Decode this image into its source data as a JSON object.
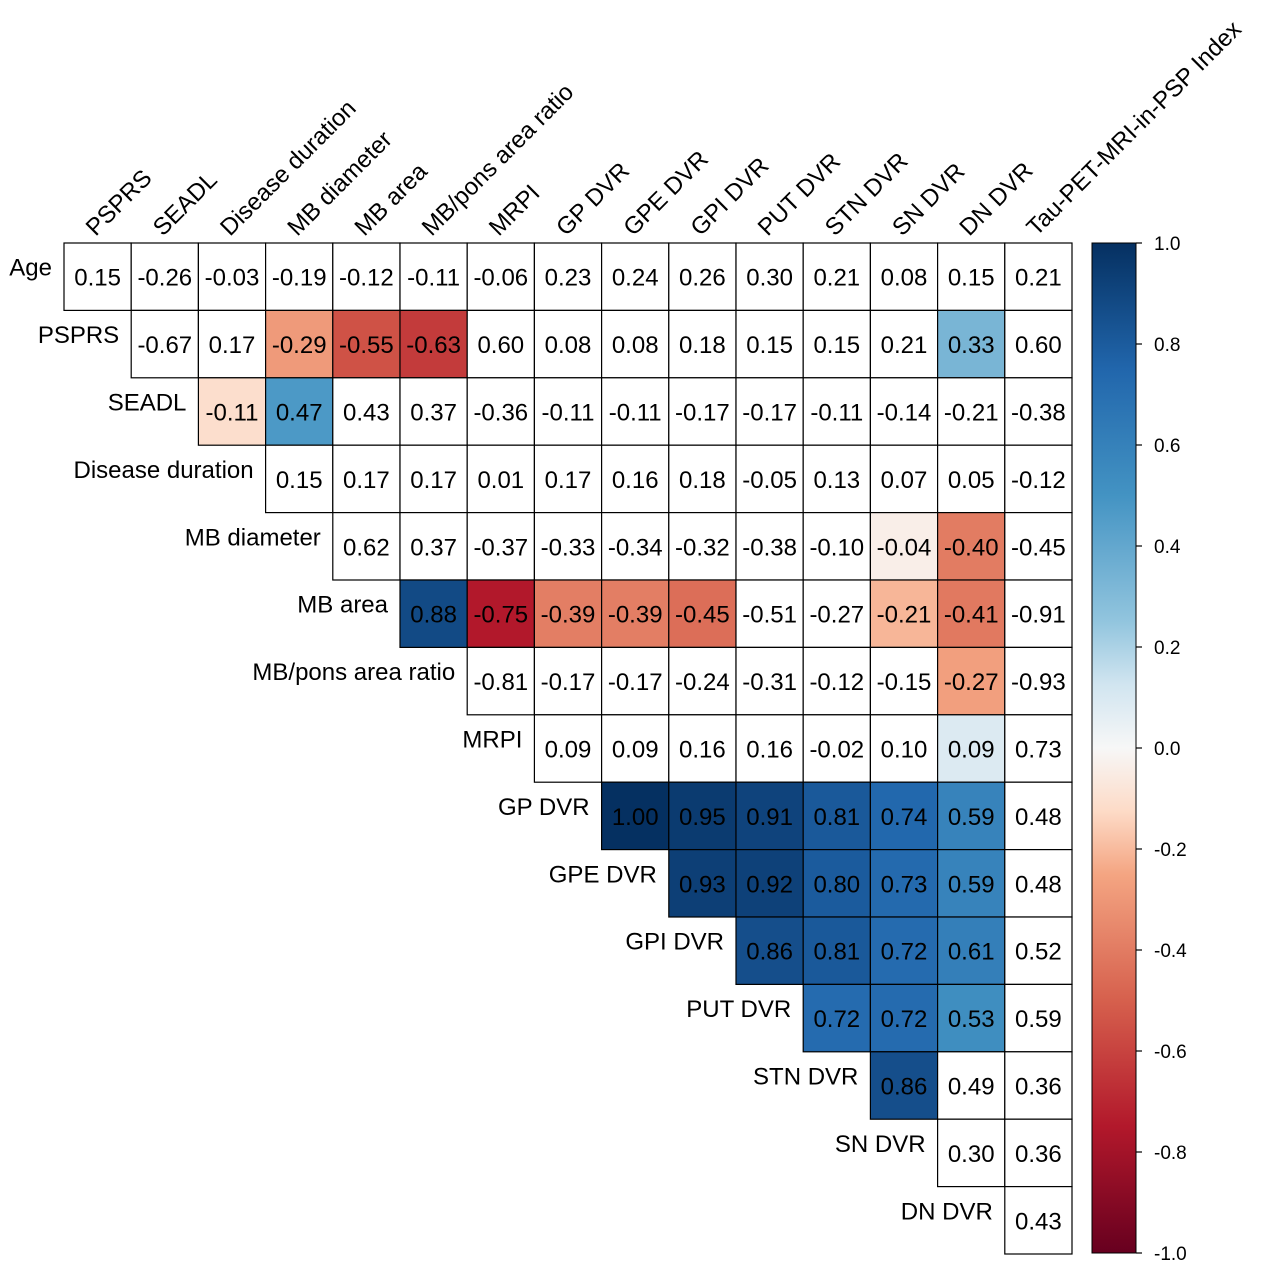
{
  "chart_data": {
    "type": "heatmap",
    "title": "",
    "xlabel": "",
    "ylabel": "",
    "layout": "upper-triangle",
    "row_labels": [
      "Age",
      "PSPRS",
      "SEADL",
      "Disease duration",
      "MB diameter",
      "MB area",
      "MB/pons area ratio",
      "MRPI",
      "GP DVR",
      "GPE DVR",
      "GPI DVR",
      "PUT DVR",
      "STN DVR",
      "SN DVR",
      "DN DVR"
    ],
    "column_labels": [
      "PSPRS",
      "SEADL",
      "Disease duration",
      "MB diameter",
      "MB area",
      "MB/pons area ratio",
      "MRPI",
      "GP DVR",
      "GPE DVR",
      "GPI DVR",
      "PUT DVR",
      "STN DVR",
      "SN DVR",
      "DN DVR",
      "Tau-PET-MRI-in-PSP Index"
    ],
    "values": [
      [
        0.15,
        -0.26,
        -0.03,
        -0.19,
        -0.12,
        -0.11,
        -0.06,
        0.23,
        0.24,
        0.26,
        0.3,
        0.21,
        0.08,
        0.15,
        0.21
      ],
      [
        -0.67,
        0.17,
        -0.29,
        -0.55,
        -0.63,
        0.6,
        0.08,
        0.08,
        0.18,
        0.15,
        0.15,
        0.21,
        0.33,
        0.6
      ],
      [
        -0.11,
        0.47,
        0.43,
        0.37,
        -0.36,
        -0.11,
        -0.11,
        -0.17,
        -0.17,
        -0.11,
        -0.14,
        -0.21,
        -0.38
      ],
      [
        0.15,
        0.17,
        0.17,
        0.01,
        0.17,
        0.16,
        0.18,
        -0.05,
        0.13,
        0.07,
        0.05,
        -0.12
      ],
      [
        0.62,
        0.37,
        -0.37,
        -0.33,
        -0.34,
        -0.32,
        -0.38,
        -0.1,
        -0.04,
        -0.4,
        -0.45
      ],
      [
        0.88,
        -0.75,
        -0.39,
        -0.39,
        -0.45,
        -0.51,
        -0.27,
        -0.21,
        -0.41,
        -0.91
      ],
      [
        -0.81,
        -0.17,
        -0.17,
        -0.24,
        -0.31,
        -0.12,
        -0.15,
        -0.27,
        -0.93
      ],
      [
        0.09,
        0.09,
        0.16,
        0.16,
        -0.02,
        0.1,
        0.09,
        0.73
      ],
      [
        1.0,
        0.95,
        0.91,
        0.81,
        0.74,
        0.59,
        0.48
      ],
      [
        0.93,
        0.92,
        0.8,
        0.73,
        0.59,
        0.48
      ],
      [
        0.86,
        0.81,
        0.72,
        0.61,
        0.52
      ],
      [
        0.72,
        0.72,
        0.53,
        0.59
      ],
      [
        0.86,
        0.49,
        0.36
      ],
      [
        0.3,
        0.36
      ],
      [
        0.43
      ]
    ],
    "colored_cells": [
      [
        1,
        0
      ],
      [
        1,
        3
      ],
      [
        1,
        4
      ],
      [
        1,
        5
      ],
      [
        1,
        13
      ],
      [
        2,
        2
      ],
      [
        2,
        3
      ],
      [
        4,
        3
      ],
      [
        4,
        12
      ],
      [
        4,
        13
      ],
      [
        5,
        4
      ],
      [
        5,
        5
      ],
      [
        5,
        6
      ],
      [
        5,
        7
      ],
      [
        5,
        8
      ],
      [
        5,
        9
      ],
      [
        5,
        12
      ],
      [
        5,
        13
      ],
      [
        6,
        5
      ],
      [
        6,
        13
      ],
      [
        7,
        13
      ],
      [
        8,
        7
      ],
      [
        8,
        8
      ],
      [
        8,
        9
      ],
      [
        8,
        10
      ],
      [
        8,
        11
      ],
      [
        8,
        12
      ],
      [
        8,
        13
      ],
      [
        9,
        8
      ],
      [
        9,
        9
      ],
      [
        9,
        10
      ],
      [
        9,
        11
      ],
      [
        9,
        12
      ],
      [
        9,
        13
      ],
      [
        10,
        9
      ],
      [
        10,
        10
      ],
      [
        10,
        11
      ],
      [
        10,
        12
      ],
      [
        10,
        13
      ],
      [
        11,
        10
      ],
      [
        11,
        11
      ],
      [
        11,
        12
      ],
      [
        11,
        13
      ],
      [
        12,
        11
      ],
      [
        12,
        12
      ],
      [
        14,
        13
      ]
    ],
    "color_scale": {
      "range": [
        -1.0,
        1.0
      ],
      "stops": [
        {
          "value": -1.0,
          "color": "#67001f"
        },
        {
          "value": -0.75,
          "color": "#b2182b"
        },
        {
          "value": -0.5,
          "color": "#d6604d"
        },
        {
          "value": -0.25,
          "color": "#f4a582"
        },
        {
          "value": -0.125,
          "color": "#fddbc7"
        },
        {
          "value": 0.0,
          "color": "#f7f7f7"
        },
        {
          "value": 0.125,
          "color": "#d1e5f0"
        },
        {
          "value": 0.25,
          "color": "#92c5de"
        },
        {
          "value": 0.5,
          "color": "#4393c3"
        },
        {
          "value": 0.75,
          "color": "#2166ac"
        },
        {
          "value": 1.0,
          "color": "#053061"
        }
      ],
      "ticks": [
        "1.0",
        "0.8",
        "0.6",
        "0.4",
        "0.2",
        "0.0",
        "-0.2",
        "-0.4",
        "-0.6",
        "-0.8",
        "-1.0"
      ]
    },
    "grid": true,
    "legend": "colorbar-right"
  }
}
